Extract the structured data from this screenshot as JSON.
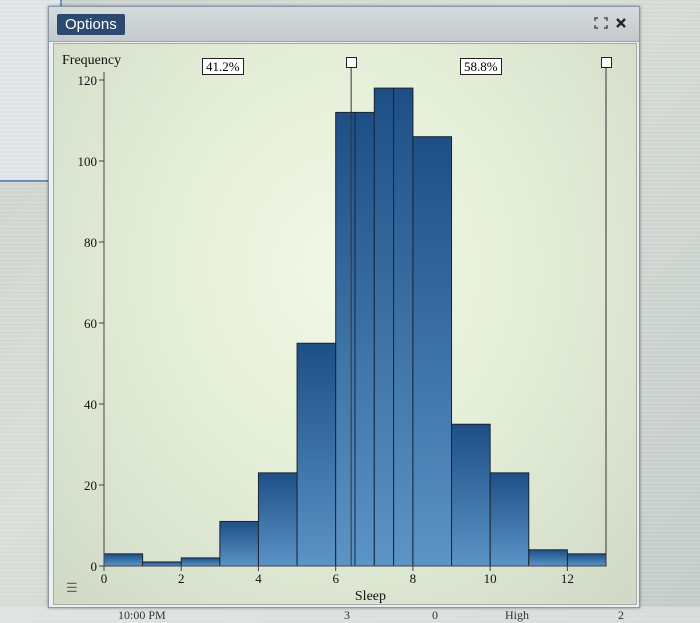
{
  "window": {
    "options_label": "Options",
    "icons": [
      "expand-icon",
      "close-icon"
    ]
  },
  "background": {
    "bottom_labels": [
      "10:00 PM",
      "3",
      "0",
      "High",
      "2"
    ]
  },
  "selection": {
    "left_percent_label": "41.2%",
    "right_percent_label": "58.8%",
    "handle_positions_x": [
      6.4,
      13.0
    ]
  },
  "chart_data": {
    "type": "bar",
    "title": "",
    "xlabel": "Sleep",
    "ylabel": "Frequency",
    "xlim": [
      0,
      13
    ],
    "ylim": [
      0,
      120
    ],
    "x_ticks": [
      0,
      2,
      4,
      6,
      8,
      10,
      12
    ],
    "y_ticks": [
      0,
      20,
      40,
      60,
      80,
      100,
      120
    ],
    "bins": [
      {
        "x0": 0,
        "x1": 1,
        "count": 3
      },
      {
        "x0": 1,
        "x1": 2,
        "count": 1
      },
      {
        "x0": 2,
        "x1": 3,
        "count": 2
      },
      {
        "x0": 3,
        "x1": 4,
        "count": 11
      },
      {
        "x0": 4,
        "x1": 5,
        "count": 23
      },
      {
        "x0": 5,
        "x1": 6,
        "count": 55
      },
      {
        "x0": 6,
        "x1": 6.5,
        "count": 112
      },
      {
        "x0": 6.5,
        "x1": 7,
        "count": 112
      },
      {
        "x0": 7,
        "x1": 7.5,
        "count": 118
      },
      {
        "x0": 7.5,
        "x1": 8,
        "count": 118
      },
      {
        "x0": 8,
        "x1": 9,
        "count": 106
      },
      {
        "x0": 9,
        "x1": 10,
        "count": 35
      },
      {
        "x0": 10,
        "x1": 11,
        "count": 23
      },
      {
        "x0": 11,
        "x1": 12,
        "count": 4
      },
      {
        "x0": 12,
        "x1": 13,
        "count": 3
      }
    ],
    "bar_color_top": "#1d4f86",
    "bar_color_bottom": "#5b94c6",
    "grid": false
  }
}
